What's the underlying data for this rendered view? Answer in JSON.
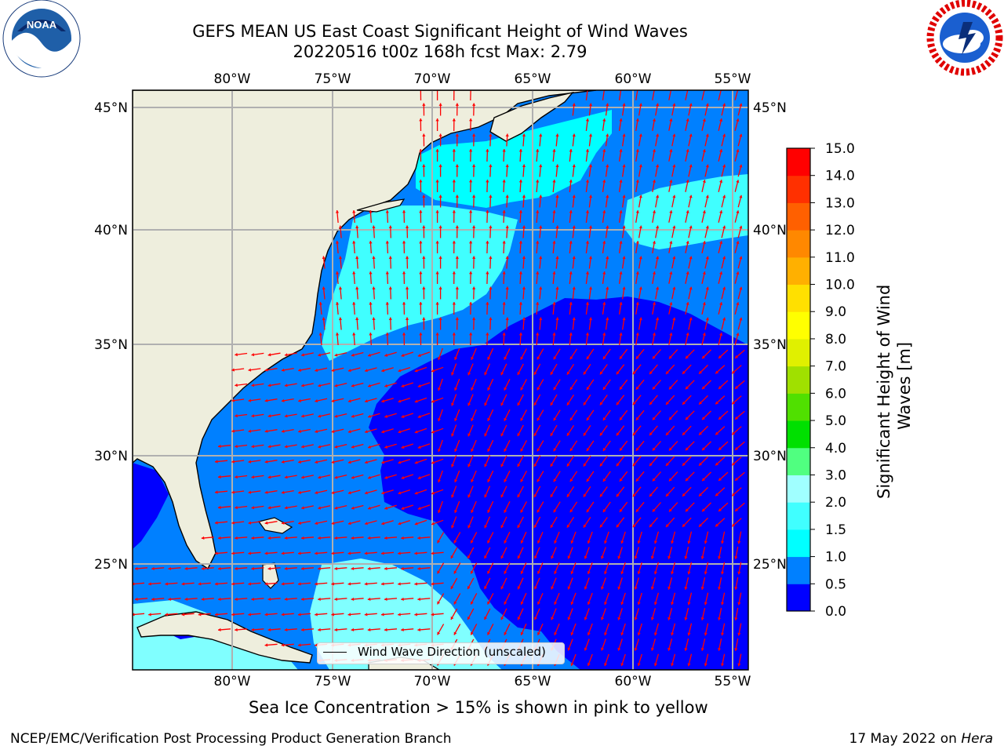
{
  "header": {
    "title_line1": "GEFS MEAN US East Coast Significant Height of Wind Waves",
    "title_line2": "20220516 t00z 168h fcst   Max: 2.79"
  },
  "logos": {
    "left_icon": "noaa-logo-icon",
    "left_text": "NOAA",
    "left_ring_text": "NATIONAL OCEANIC AND ATMOSPHERIC ADMINISTRATION · U.S. DEPARTMENT OF COMMERCE",
    "right_icon": "national-weather-service-logo-icon",
    "right_ring_text": "NATIONAL WEATHER SERVICE"
  },
  "map": {
    "lon_labels": [
      "80°W",
      "75°W",
      "70°W",
      "65°W",
      "60°W",
      "55°W"
    ],
    "lat_labels": [
      "45°N",
      "40°N",
      "35°N",
      "30°N",
      "25°N"
    ],
    "lon_range": [
      -85,
      -54.3
    ],
    "lat_range": [
      20.5,
      45.8
    ],
    "gridlines": true,
    "arrow_color": "#ff0000",
    "land_color": "#eeeedd",
    "legend_label": "Wind Wave Direction (unscaled)"
  },
  "colorbar": {
    "title": "Significant Height of Wind Waves [m]",
    "title_line1": "Significant Height of Wind",
    "title_line2": "Waves [m]",
    "tick_labels": [
      "0.0",
      "0.5",
      "1.0",
      "1.5",
      "2.0",
      "3.0",
      "4.0",
      "5.0",
      "6.0",
      "7.0",
      "8.0",
      "9.0",
      "10.0",
      "11.0",
      "12.0",
      "13.0",
      "14.0",
      "15.0"
    ],
    "colors": [
      "#0000ff",
      "#0080ff",
      "#00ffff",
      "#40ffff",
      "#a0ffff",
      "#50ff80",
      "#00e000",
      "#50e000",
      "#a0e000",
      "#e0f000",
      "#ffff00",
      "#ffe000",
      "#ffb000",
      "#ff8800",
      "#ff6000",
      "#ff3000",
      "#ff0000"
    ]
  },
  "footer": {
    "note": "Sea Ice Concentration > 15% is shown in pink to yellow",
    "credit": "NCEP/EMC/Verification Post Processing Product Generation Branch",
    "date": "17 May 2022 on ",
    "machine": "Hera"
  }
}
